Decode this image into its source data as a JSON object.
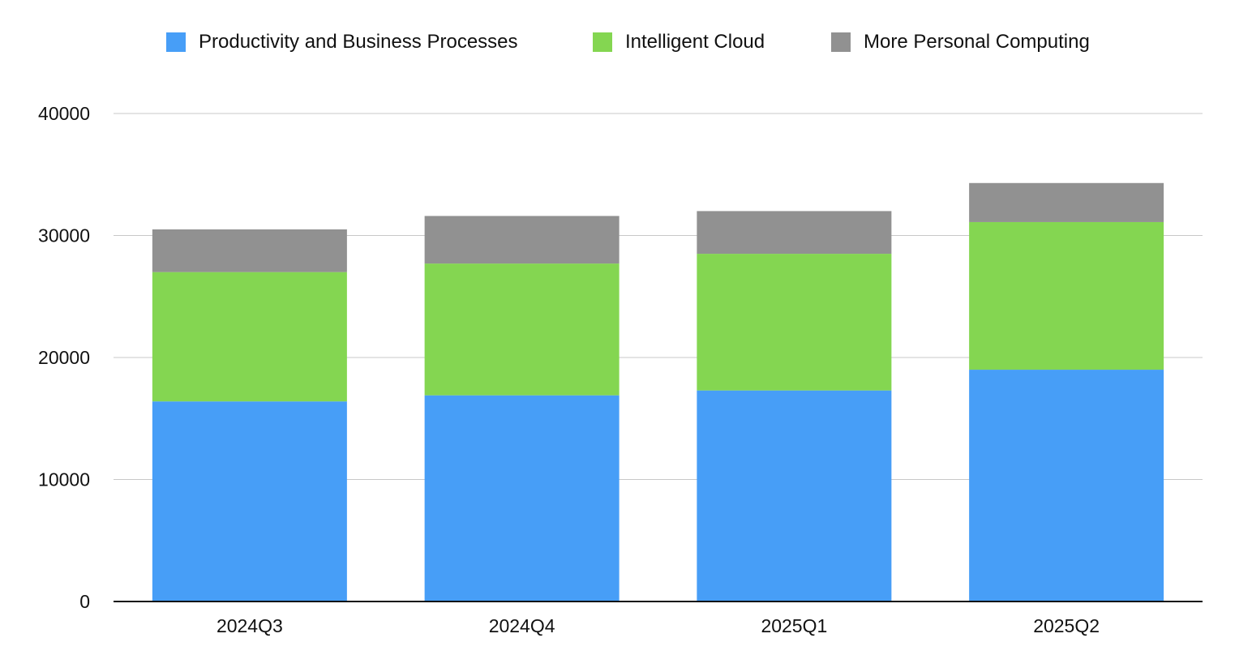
{
  "chart_data": {
    "type": "bar",
    "stacked": true,
    "categories": [
      "2024Q3",
      "2024Q4",
      "2025Q1",
      "2025Q2"
    ],
    "series": [
      {
        "name": "Productivity and Business Processes",
        "color": "#479ef7",
        "values": [
          16400,
          16900,
          17300,
          19000
        ]
      },
      {
        "name": "Intelligent Cloud",
        "color": "#84d651",
        "values": [
          10600,
          10800,
          11200,
          12100
        ]
      },
      {
        "name": "More Personal Computing",
        "color": "#919191",
        "values": [
          3500,
          3900,
          3500,
          3200
        ]
      }
    ],
    "ylim": [
      0,
      40000
    ],
    "yticks": [
      "0",
      "10000",
      "20000",
      "30000",
      "40000"
    ],
    "xlabel": "",
    "ylabel": "",
    "title": "",
    "grid": true,
    "legend_position": "top"
  }
}
